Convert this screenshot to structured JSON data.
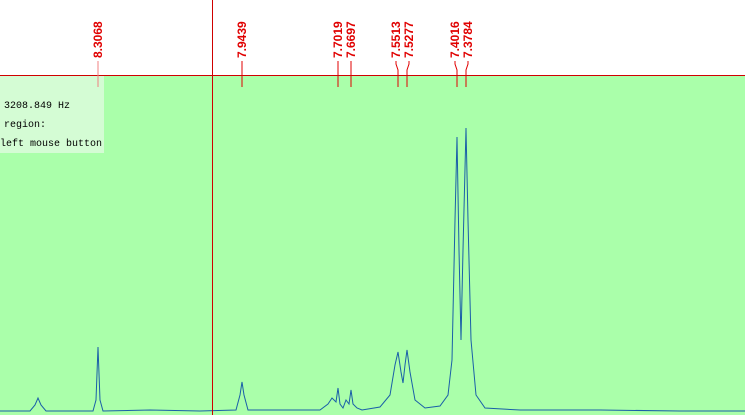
{
  "peak_labels": [
    "8.3068",
    "7.9439",
    "7.7019",
    "7.6697",
    "7.5513",
    "7.5277",
    "7.4016",
    "7.3784"
  ],
  "info_lines": [
    "3208.849 Hz",
    "region:",
    "left mouse button"
  ]
}
